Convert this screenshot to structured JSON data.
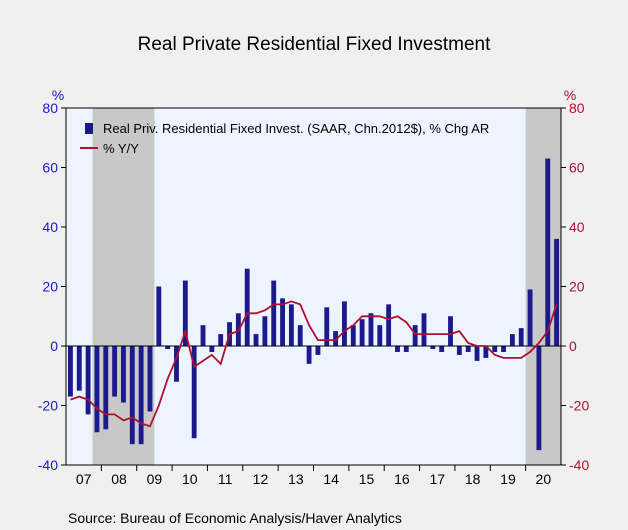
{
  "chart_data": {
    "type": "bar",
    "title": "Real Private Residential Fixed Investment",
    "left_unit": "%",
    "right_unit": "%",
    "ylim": [
      -40,
      80
    ],
    "yticks": [
      -40,
      -20,
      0,
      20,
      40,
      60,
      80
    ],
    "x_year_labels": [
      "07",
      "08",
      "09",
      "10",
      "11",
      "12",
      "13",
      "14",
      "15",
      "16",
      "17",
      "18",
      "19",
      "20"
    ],
    "quarters": [
      "2007Q1",
      "2007Q2",
      "2007Q3",
      "2007Q4",
      "2008Q1",
      "2008Q2",
      "2008Q3",
      "2008Q4",
      "2009Q1",
      "2009Q2",
      "2009Q3",
      "2009Q4",
      "2010Q1",
      "2010Q2",
      "2010Q3",
      "2010Q4",
      "2011Q1",
      "2011Q2",
      "2011Q3",
      "2011Q4",
      "2012Q1",
      "2012Q2",
      "2012Q3",
      "2012Q4",
      "2013Q1",
      "2013Q2",
      "2013Q3",
      "2013Q4",
      "2014Q1",
      "2014Q2",
      "2014Q3",
      "2014Q4",
      "2015Q1",
      "2015Q2",
      "2015Q3",
      "2015Q4",
      "2016Q1",
      "2016Q2",
      "2016Q3",
      "2016Q4",
      "2017Q1",
      "2017Q2",
      "2017Q3",
      "2017Q4",
      "2018Q1",
      "2018Q2",
      "2018Q3",
      "2018Q4",
      "2019Q1",
      "2019Q2",
      "2019Q3",
      "2019Q4",
      "2020Q1",
      "2020Q2",
      "2020Q3",
      "2020Q4"
    ],
    "series": [
      {
        "name": "Real Priv. Residential Fixed Invest. (SAAR, Chn.2012$), % Chg AR",
        "kind": "bar",
        "color": "#1a1a8c",
        "values": [
          -17,
          -15,
          -23,
          -29,
          -28,
          -17,
          -19,
          -33,
          -33,
          -22,
          20,
          -1,
          -12,
          22,
          -31,
          7,
          -2,
          4,
          8,
          11,
          26,
          4,
          10,
          22,
          16,
          14,
          7,
          -6,
          -3,
          13,
          5,
          15,
          7,
          9,
          11,
          7,
          14,
          -2,
          -2,
          7,
          11,
          -1,
          -2,
          10,
          -3,
          -2,
          -5,
          -4,
          -2,
          -2,
          4,
          6,
          19,
          -35,
          63,
          36
        ]
      },
      {
        "name": "% Y/Y",
        "kind": "line",
        "color": "#b0102e",
        "values": [
          -18,
          -17,
          -18,
          -21,
          -23,
          -23,
          -25,
          -24,
          -26,
          -27,
          -20,
          -11,
          -4,
          5,
          -7,
          -5,
          -3,
          -6,
          4,
          5,
          11,
          11,
          12,
          14,
          14,
          15,
          14,
          7,
          2,
          2,
          2,
          5,
          7,
          10,
          10,
          10,
          9,
          10,
          8,
          4,
          4,
          4,
          4,
          4,
          5,
          1,
          0,
          0,
          -3,
          -4,
          -4,
          -4,
          -2,
          1,
          5,
          14
        ]
      }
    ],
    "recession_shading": [
      {
        "start": "2007Q4",
        "end": "2009Q2"
      },
      {
        "start": "2020Q1",
        "end": "2020Q4"
      }
    ],
    "legend_placement": "top-left",
    "grid": false
  },
  "colors": {
    "page_background": "#f0f0f0",
    "plot_background": "#eef4ff",
    "recession_shade": "#c8c8c8",
    "left_axis": "#1a1ad0",
    "right_axis": "#b0102e"
  },
  "source": "Source:  Bureau of Economic Analysis/Haver Analytics"
}
